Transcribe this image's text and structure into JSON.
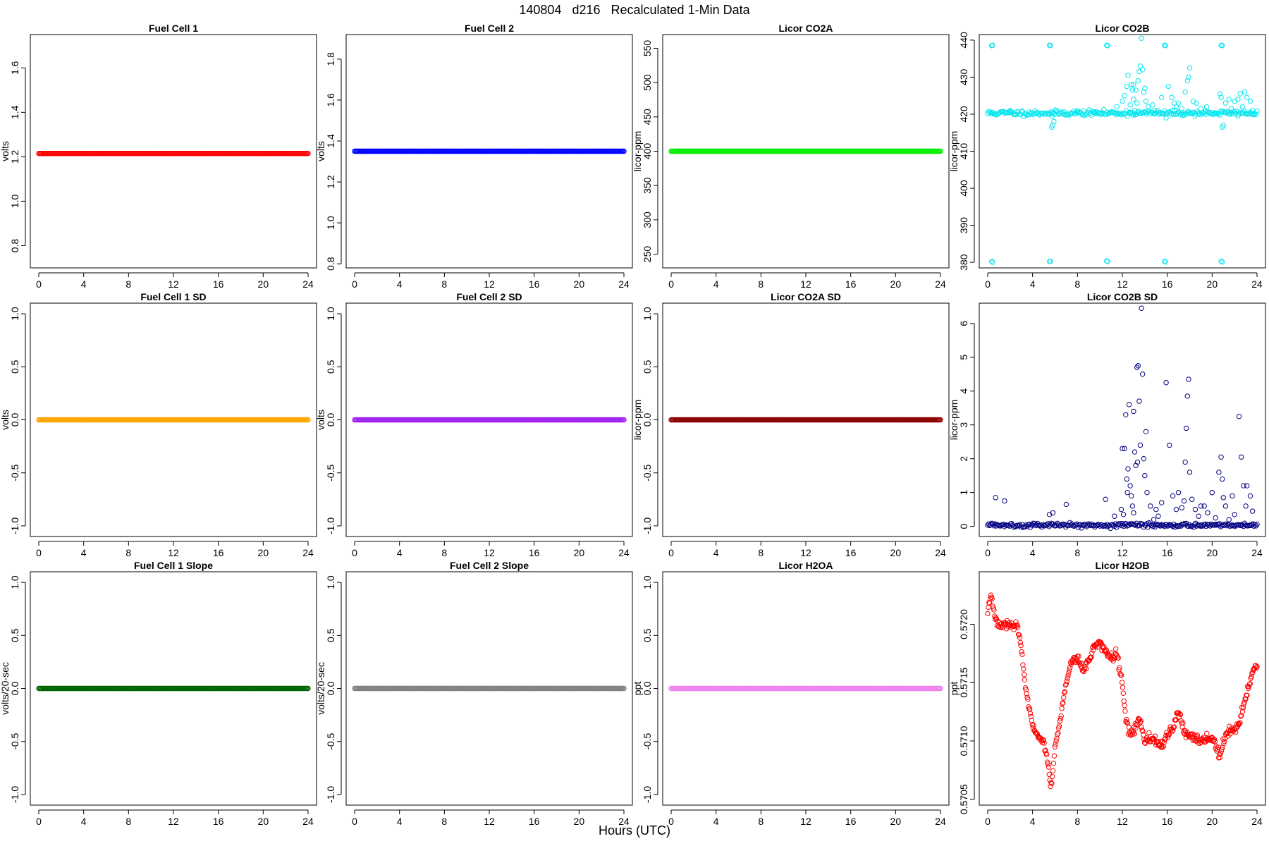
{
  "figure": {
    "title": "140804   d216   Recalculated 1-Min Data",
    "xlabel": "Hours (UTC)"
  },
  "chart_data": [
    {
      "type": "scatter",
      "title": "Fuel Cell 1",
      "ylabel": "volts",
      "xlim": [
        0,
        24
      ],
      "ylim": [
        0.7,
        1.75
      ],
      "xticks": [
        0,
        4,
        8,
        12,
        16,
        20,
        24
      ],
      "yticks": [
        0.8,
        1.0,
        1.2,
        1.4,
        1.6
      ],
      "ytick_labels": [
        "0.8",
        "1.0",
        "1.2",
        "1.4",
        "1.6"
      ],
      "color": "#ff0000",
      "const": {
        "from": 0,
        "to": 24,
        "y": 1.215
      }
    },
    {
      "type": "scatter",
      "title": "Fuel Cell 2",
      "ylabel": "volts",
      "xlim": [
        0,
        24
      ],
      "ylim": [
        0.78,
        1.92
      ],
      "xticks": [
        0,
        4,
        8,
        12,
        16,
        20,
        24
      ],
      "yticks": [
        0.8,
        1.0,
        1.2,
        1.4,
        1.6,
        1.8
      ],
      "ytick_labels": [
        "0.8",
        "1.0",
        "1.2",
        "1.4",
        "1.6",
        "1.8"
      ],
      "color": "#0000ff",
      "const": {
        "from": 0,
        "to": 24,
        "y": 1.35
      }
    },
    {
      "type": "scatter",
      "title": "Licor CO2A",
      "ylabel": "licor-ppm",
      "xlim": [
        0,
        24
      ],
      "ylim": [
        230,
        570
      ],
      "xticks": [
        0,
        4,
        8,
        12,
        16,
        20,
        24
      ],
      "yticks": [
        250,
        300,
        350,
        400,
        450,
        500,
        550
      ],
      "ytick_labels": [
        "250",
        "300",
        "350",
        "400",
        "450",
        "500",
        "550"
      ],
      "color": "#00ee00",
      "const": {
        "from": 0,
        "to": 24,
        "y": 400
      }
    },
    {
      "type": "scatter",
      "title": "Licor CO2B",
      "ylabel": "licor-ppm",
      "xlim": [
        0,
        24
      ],
      "ylim": [
        378.5,
        441.5
      ],
      "xticks": [
        0,
        4,
        8,
        12,
        16,
        20,
        24
      ],
      "yticks": [
        380,
        390,
        400,
        410,
        420,
        430,
        440
      ],
      "ytick_labels": [
        "380",
        "390",
        "400",
        "410",
        "420",
        "430",
        "440"
      ],
      "color": "#00e5ee",
      "points": [
        [
          0.35,
          438.5
        ],
        [
          0.45,
          438.6
        ],
        [
          5.5,
          438.6
        ],
        [
          5.6,
          438.5
        ],
        [
          10.6,
          438.6
        ],
        [
          10.7,
          438.5
        ],
        [
          15.75,
          438.6
        ],
        [
          15.85,
          438.5
        ],
        [
          20.8,
          438.6
        ],
        [
          20.9,
          438.5
        ],
        [
          0.35,
          380.3
        ],
        [
          0.45,
          380.0
        ],
        [
          5.5,
          380.2
        ],
        [
          5.6,
          380.3
        ],
        [
          10.6,
          380.4
        ],
        [
          10.7,
          380.2
        ],
        [
          15.75,
          380.3
        ],
        [
          15.85,
          380.1
        ],
        [
          20.8,
          380.3
        ],
        [
          20.9,
          380.1
        ],
        [
          5.7,
          416.5
        ],
        [
          5.8,
          417.0
        ],
        [
          5.9,
          418.0
        ],
        [
          5.75,
          419.5
        ],
        [
          20.9,
          416.5
        ],
        [
          21.0,
          417.0
        ],
        [
          15.9,
          419.0
        ],
        [
          12.2,
          425.0
        ],
        [
          12.4,
          427.5
        ],
        [
          12.5,
          430.5
        ],
        [
          12.8,
          428.0
        ],
        [
          13.0,
          424.0
        ],
        [
          13.2,
          426.5
        ],
        [
          13.4,
          429.0
        ],
        [
          13.5,
          431.5
        ],
        [
          13.6,
          433.0
        ],
        [
          13.7,
          440.5
        ],
        [
          13.8,
          432.0
        ],
        [
          13.9,
          426.0
        ],
        [
          14.1,
          423.5
        ],
        [
          14.3,
          422.0
        ],
        [
          15.5,
          424.5
        ],
        [
          16.1,
          427.5
        ],
        [
          16.4,
          424.5
        ],
        [
          17.0,
          423.0
        ],
        [
          17.6,
          426.0
        ],
        [
          17.8,
          429.0
        ],
        [
          17.9,
          430.0
        ],
        [
          18.0,
          432.5
        ],
        [
          18.3,
          423.5
        ],
        [
          20.7,
          425.5
        ],
        [
          20.8,
          424.5
        ],
        [
          21.2,
          423.0
        ],
        [
          21.7,
          421.5
        ],
        [
          22.3,
          424.0
        ],
        [
          22.5,
          425.5
        ],
        [
          22.9,
          426.0
        ],
        [
          23.1,
          424.5
        ],
        [
          23.4,
          423.5
        ],
        [
          11.5,
          422.0
        ],
        [
          12.0,
          423.5
        ],
        [
          14.7,
          422.5
        ],
        [
          16.8,
          422.0
        ],
        [
          19.0,
          421.5
        ],
        [
          13.3,
          423.0
        ],
        [
          13.1,
          421.0
        ],
        [
          12.7,
          422.5
        ],
        [
          23.6,
          421.0
        ],
        [
          22.0,
          423.5
        ],
        [
          8.0,
          421.0
        ],
        [
          2.0,
          421.0
        ],
        [
          9.5,
          420.5
        ],
        [
          14.9,
          421.0
        ],
        [
          16.6,
          423.0
        ],
        [
          19.5,
          422.0
        ],
        [
          21.5,
          424.0
        ],
        [
          18.6,
          423.0
        ],
        [
          12.9,
          426.5
        ],
        [
          13.0,
          428.0
        ],
        [
          14.0,
          427.0
        ],
        [
          17.3,
          421.5
        ],
        [
          22.7,
          422.0
        ]
      ],
      "band": {
        "from": 0,
        "to": 24,
        "y": 420.3,
        "jitter": 0.35,
        "count": 240,
        "seed": 11
      }
    },
    {
      "type": "scatter",
      "title": "Fuel Cell 1 SD",
      "ylabel": "volts",
      "xlim": [
        0,
        24
      ],
      "ylim": [
        -1.1,
        1.1
      ],
      "xticks": [
        0,
        4,
        8,
        12,
        16,
        20,
        24
      ],
      "yticks": [
        -1.0,
        -0.5,
        0.0,
        0.5,
        1.0
      ],
      "ytick_labels": [
        "-1.0",
        "-0.5",
        "0.0",
        "0.5",
        "1.0"
      ],
      "color": "#ffa500",
      "const": {
        "from": 0,
        "to": 24,
        "y": 0
      }
    },
    {
      "type": "scatter",
      "title": "Fuel Cell 2 SD",
      "ylabel": "volts",
      "xlim": [
        0,
        24
      ],
      "ylim": [
        -1.1,
        1.1
      ],
      "xticks": [
        0,
        4,
        8,
        12,
        16,
        20,
        24
      ],
      "yticks": [
        -1.0,
        -0.5,
        0.0,
        0.5,
        1.0
      ],
      "ytick_labels": [
        "-1.0",
        "-0.5",
        "0.0",
        "0.5",
        "1.0"
      ],
      "color": "#a020f0",
      "const": {
        "from": 0,
        "to": 24,
        "y": 0
      }
    },
    {
      "type": "scatter",
      "title": "Licor CO2A SD",
      "ylabel": "licor-ppm",
      "xlim": [
        0,
        24
      ],
      "ylim": [
        -1.1,
        1.1
      ],
      "xticks": [
        0,
        4,
        8,
        12,
        16,
        20,
        24
      ],
      "yticks": [
        -1.0,
        -0.5,
        0.0,
        0.5,
        1.0
      ],
      "ytick_labels": [
        "-1.0",
        "-0.5",
        "0.0",
        "0.5",
        "1.0"
      ],
      "color": "#8b0000",
      "const": {
        "from": 0,
        "to": 24,
        "y": 0
      }
    },
    {
      "type": "scatter",
      "title": "Licor CO2B SD",
      "ylabel": "licor-ppm",
      "xlim": [
        0,
        24
      ],
      "ylim": [
        -0.3,
        6.6
      ],
      "xticks": [
        0,
        4,
        8,
        12,
        16,
        20,
        24
      ],
      "yticks": [
        0,
        1,
        2,
        3,
        4,
        5,
        6
      ],
      "ytick_labels": [
        "0",
        "1",
        "2",
        "3",
        "4",
        "5",
        "6"
      ],
      "color": "#000080",
      "points": [
        [
          0.7,
          0.85
        ],
        [
          1.5,
          0.75
        ],
        [
          5.5,
          0.35
        ],
        [
          5.8,
          0.4
        ],
        [
          7.0,
          0.65
        ],
        [
          10.5,
          0.8
        ],
        [
          11.3,
          0.3
        ],
        [
          11.9,
          0.5
        ],
        [
          12.0,
          2.3
        ],
        [
          12.2,
          2.3
        ],
        [
          12.3,
          3.3
        ],
        [
          12.4,
          1.4
        ],
        [
          12.5,
          1.7
        ],
        [
          12.6,
          3.6
        ],
        [
          12.7,
          1.2
        ],
        [
          12.8,
          0.9
        ],
        [
          12.9,
          0.6
        ],
        [
          13.0,
          3.4
        ],
        [
          13.1,
          2.2
        ],
        [
          13.2,
          1.8
        ],
        [
          13.3,
          4.7
        ],
        [
          13.4,
          4.75
        ],
        [
          13.5,
          3.7
        ],
        [
          13.6,
          2.4
        ],
        [
          13.7,
          6.45
        ],
        [
          13.8,
          4.5
        ],
        [
          13.9,
          2.0
        ],
        [
          14.0,
          1.5
        ],
        [
          14.1,
          2.8
        ],
        [
          14.2,
          1.0
        ],
        [
          14.5,
          0.6
        ],
        [
          15.0,
          0.5
        ],
        [
          15.5,
          0.7
        ],
        [
          15.9,
          4.25
        ],
        [
          16.2,
          2.4
        ],
        [
          16.5,
          0.9
        ],
        [
          17.0,
          1.0
        ],
        [
          17.5,
          0.75
        ],
        [
          17.6,
          1.9
        ],
        [
          17.7,
          2.9
        ],
        [
          17.8,
          3.85
        ],
        [
          17.9,
          4.35
        ],
        [
          18.0,
          1.6
        ],
        [
          18.2,
          0.8
        ],
        [
          18.5,
          0.5
        ],
        [
          19.0,
          0.6
        ],
        [
          20.0,
          1.0
        ],
        [
          20.6,
          1.6
        ],
        [
          20.8,
          2.05
        ],
        [
          20.9,
          1.4
        ],
        [
          21.2,
          0.6
        ],
        [
          21.8,
          0.9
        ],
        [
          22.4,
          3.25
        ],
        [
          22.6,
          2.05
        ],
        [
          22.8,
          1.2
        ],
        [
          23.1,
          1.2
        ],
        [
          23.4,
          0.9
        ],
        [
          23.6,
          0.45
        ],
        [
          13.0,
          0.4
        ],
        [
          15.2,
          0.3
        ],
        [
          19.6,
          0.4
        ],
        [
          21.5,
          0.2
        ],
        [
          12.1,
          0.35
        ],
        [
          14.8,
          0.2
        ],
        [
          16.8,
          0.5
        ],
        [
          18.8,
          0.3
        ],
        [
          20.3,
          0.25
        ],
        [
          22.0,
          0.35
        ],
        [
          23.0,
          0.6
        ],
        [
          13.35,
          1.9
        ],
        [
          12.45,
          1.0
        ],
        [
          17.3,
          0.55
        ],
        [
          19.3,
          0.6
        ],
        [
          21.0,
          0.85
        ]
      ],
      "band": {
        "from": 0,
        "to": 24,
        "y": 0.04,
        "jitter": 0.03,
        "count": 260,
        "seed": 5
      }
    },
    {
      "type": "scatter",
      "title": "Fuel Cell 1 Slope",
      "ylabel": "volts/20-sec",
      "xlim": [
        0,
        24
      ],
      "ylim": [
        -1.1,
        1.1
      ],
      "xticks": [
        0,
        4,
        8,
        12,
        16,
        20,
        24
      ],
      "yticks": [
        -1.0,
        -0.5,
        0.0,
        0.5,
        1.0
      ],
      "ytick_labels": [
        "-1.0",
        "-0.5",
        "0.0",
        "0.5",
        "1.0"
      ],
      "color": "#006400",
      "const": {
        "from": 0,
        "to": 24,
        "y": 0
      }
    },
    {
      "type": "scatter",
      "title": "Fuel Cell 2 Slope",
      "ylabel": "volts/20-sec",
      "xlim": [
        0,
        24
      ],
      "ylim": [
        -1.1,
        1.1
      ],
      "xticks": [
        0,
        4,
        8,
        12,
        16,
        20,
        24
      ],
      "yticks": [
        -1.0,
        -0.5,
        0.0,
        0.5,
        1.0
      ],
      "ytick_labels": [
        "-1.0",
        "-0.5",
        "0.0",
        "0.5",
        "1.0"
      ],
      "color": "#808080",
      "const": {
        "from": 0,
        "to": 24,
        "y": 0
      }
    },
    {
      "type": "scatter",
      "title": "Licor H2OA",
      "ylabel": "ppt",
      "xlim": [
        0,
        24
      ],
      "ylim": [
        -1.1,
        1.1
      ],
      "xticks": [
        0,
        4,
        8,
        12,
        16,
        20,
        24
      ],
      "yticks": [
        -1.0,
        -0.5,
        0.0,
        0.5,
        1.0
      ],
      "ytick_labels": [
        "-1.0",
        "-0.5",
        "0.0",
        "0.5",
        "1.0"
      ],
      "color": "#ee82ee",
      "const": {
        "from": 0,
        "to": 24,
        "y": 0
      }
    },
    {
      "type": "scatter",
      "title": "Licor H2OB",
      "ylabel": "ppt",
      "xlim": [
        0,
        24
      ],
      "ylim": [
        0.57045,
        0.57245
      ],
      "xticks": [
        0,
        4,
        8,
        12,
        16,
        20,
        24
      ],
      "yticks": [
        0.5705,
        0.571,
        0.5715,
        0.572
      ],
      "ytick_labels": [
        "0.5705",
        "0.5710",
        "0.5715",
        "0.5720"
      ],
      "color": "#ff0000",
      "trace": {
        "knots": [
          [
            0,
            0.57212
          ],
          [
            0.3,
            0.57225
          ],
          [
            0.7,
            0.57205
          ],
          [
            1.0,
            0.572
          ],
          [
            2.0,
            0.572
          ],
          [
            2.7,
            0.57197
          ],
          [
            3.0,
            0.5718
          ],
          [
            3.3,
            0.5715
          ],
          [
            3.6,
            0.5713
          ],
          [
            4.0,
            0.57115
          ],
          [
            4.4,
            0.57103
          ],
          [
            5.0,
            0.571
          ],
          [
            5.4,
            0.5708
          ],
          [
            5.6,
            0.57062
          ],
          [
            5.8,
            0.5707
          ],
          [
            6.0,
            0.57095
          ],
          [
            6.5,
            0.5712
          ],
          [
            7.0,
            0.5715
          ],
          [
            7.5,
            0.57168
          ],
          [
            8.0,
            0.57172
          ],
          [
            8.5,
            0.5716
          ],
          [
            9.0,
            0.57168
          ],
          [
            9.5,
            0.5718
          ],
          [
            10.0,
            0.57185
          ],
          [
            10.5,
            0.57178
          ],
          [
            11.0,
            0.5717
          ],
          [
            11.5,
            0.57175
          ],
          [
            12.0,
            0.5715
          ],
          [
            12.3,
            0.5712
          ],
          [
            12.7,
            0.57105
          ],
          [
            13.0,
            0.57108
          ],
          [
            13.5,
            0.5712
          ],
          [
            14.0,
            0.571
          ],
          [
            14.5,
            0.57102
          ],
          [
            15.0,
            0.571
          ],
          [
            15.5,
            0.57095
          ],
          [
            16.0,
            0.57105
          ],
          [
            16.5,
            0.5711
          ],
          [
            17.0,
            0.57125
          ],
          [
            17.5,
            0.57108
          ],
          [
            18.0,
            0.57105
          ],
          [
            19.0,
            0.571
          ],
          [
            20.0,
            0.57102
          ],
          [
            20.4,
            0.57095
          ],
          [
            20.7,
            0.57085
          ],
          [
            21.0,
            0.571
          ],
          [
            21.5,
            0.5711
          ],
          [
            22.0,
            0.57108
          ],
          [
            22.4,
            0.57115
          ],
          [
            22.8,
            0.5713
          ],
          [
            23.2,
            0.57145
          ],
          [
            23.6,
            0.57158
          ],
          [
            24.0,
            0.57165
          ]
        ],
        "jitter": 1.8e-05,
        "count": 430,
        "seed": 3
      }
    }
  ]
}
